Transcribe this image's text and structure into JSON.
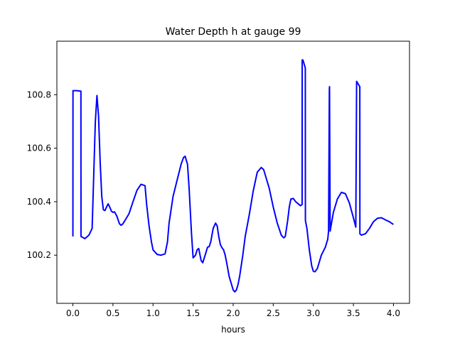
{
  "chart_data": {
    "type": "line",
    "title": "Water Depth h at gauge 99",
    "xlabel": "hours",
    "ylabel": "",
    "xlim": [
      -0.2,
      4.2
    ],
    "ylim": [
      100.02,
      101.0
    ],
    "x_ticks": [
      0.0,
      0.5,
      1.0,
      1.5,
      2.0,
      2.5,
      3.0,
      3.5,
      4.0
    ],
    "x_tick_labels": [
      "0.0",
      "0.5",
      "1.0",
      "1.5",
      "2.0",
      "2.5",
      "3.0",
      "3.5",
      "4.0"
    ],
    "y_ticks": [
      100.2,
      100.4,
      100.6,
      100.8
    ],
    "y_tick_labels": [
      "100.2",
      "100.4",
      "100.6",
      "100.8"
    ],
    "grid": false,
    "color": "#0000ff",
    "series": [
      {
        "x": [
          0.0,
          0.001,
          0.002,
          0.05,
          0.1,
          0.101,
          0.15,
          0.2,
          0.24,
          0.26,
          0.28,
          0.3,
          0.32,
          0.34,
          0.36,
          0.38,
          0.4,
          0.42,
          0.44,
          0.46,
          0.48,
          0.5,
          0.52,
          0.55,
          0.58,
          0.6,
          0.62,
          0.65,
          0.68,
          0.7,
          0.75,
          0.8,
          0.85,
          0.9,
          0.92,
          0.95,
          0.98,
          1.0,
          1.05,
          1.1,
          1.15,
          1.18,
          1.2,
          1.25,
          1.3,
          1.35,
          1.38,
          1.4,
          1.43,
          1.45,
          1.48,
          1.5,
          1.53,
          1.55,
          1.57,
          1.58,
          1.6,
          1.62,
          1.65,
          1.68,
          1.7,
          1.72,
          1.75,
          1.78,
          1.8,
          1.82,
          1.84,
          1.86,
          1.88,
          1.9,
          1.92,
          1.95,
          1.98,
          2.0,
          2.02,
          2.04,
          2.06,
          2.08,
          2.1,
          2.12,
          2.15,
          2.2,
          2.25,
          2.3,
          2.35,
          2.38,
          2.4,
          2.45,
          2.5,
          2.55,
          2.6,
          2.63,
          2.65,
          2.68,
          2.7,
          2.72,
          2.75,
          2.78,
          2.8,
          2.84,
          2.86,
          2.861,
          2.87,
          2.9,
          2.901,
          2.92,
          2.95,
          2.98,
          3.0,
          3.02,
          3.05,
          3.08,
          3.1,
          3.15,
          3.18,
          3.19,
          3.2,
          3.202,
          3.21,
          3.25,
          3.3,
          3.35,
          3.4,
          3.45,
          3.5,
          3.53,
          3.54,
          3.58,
          3.581,
          3.6,
          3.65,
          3.7,
          3.75,
          3.8,
          3.85,
          3.9,
          3.95,
          4.0
        ],
        "y": [
          100.27,
          100.815,
          100.815,
          100.815,
          100.813,
          100.27,
          100.262,
          100.275,
          100.3,
          100.5,
          100.7,
          100.797,
          100.72,
          100.55,
          100.42,
          100.37,
          100.367,
          100.38,
          100.392,
          100.38,
          100.365,
          100.36,
          100.362,
          100.345,
          100.318,
          100.312,
          100.316,
          100.33,
          100.345,
          100.355,
          100.4,
          100.443,
          100.465,
          100.46,
          100.39,
          100.31,
          100.25,
          100.22,
          100.203,
          100.2,
          100.205,
          100.25,
          100.32,
          100.42,
          100.48,
          100.54,
          100.565,
          100.57,
          100.54,
          100.45,
          100.28,
          100.19,
          100.2,
          100.22,
          100.225,
          100.21,
          100.18,
          100.172,
          100.2,
          100.23,
          100.232,
          100.25,
          100.3,
          100.32,
          100.31,
          100.27,
          100.24,
          100.228,
          100.22,
          100.2,
          100.17,
          100.12,
          100.09,
          100.07,
          100.063,
          100.07,
          100.09,
          100.12,
          100.16,
          100.2,
          100.27,
          100.35,
          100.44,
          100.51,
          100.528,
          100.52,
          100.5,
          100.45,
          100.38,
          100.32,
          100.275,
          100.265,
          100.27,
          100.33,
          100.38,
          100.41,
          100.412,
          100.4,
          100.395,
          100.385,
          100.39,
          100.93,
          100.93,
          100.9,
          100.33,
          100.3,
          100.22,
          100.16,
          100.14,
          100.138,
          100.15,
          100.18,
          100.2,
          100.23,
          100.26,
          100.29,
          100.82,
          100.83,
          100.29,
          100.36,
          100.41,
          100.435,
          100.43,
          100.395,
          100.34,
          100.305,
          100.85,
          100.83,
          100.28,
          100.275,
          100.28,
          100.3,
          100.325,
          100.338,
          100.34,
          100.332,
          100.325,
          100.315
        ]
      }
    ]
  }
}
